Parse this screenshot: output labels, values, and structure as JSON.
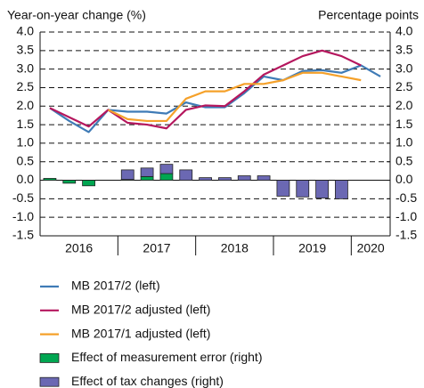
{
  "chart_data": {
    "type": "line",
    "y_label": "Year-on-year change (%)",
    "y2_label": "Percentage points",
    "categories": [
      "2016",
      null,
      null,
      null,
      "2017",
      null,
      null,
      null,
      "2018",
      null,
      null,
      null,
      "2019",
      null,
      null,
      null,
      "2020",
      null
    ],
    "ylim": [
      -1.5,
      4.0
    ],
    "yticks": [
      {
        "value": -1.5,
        "label": "-1.5"
      },
      {
        "value": -1.0,
        "label": "-1.0"
      },
      {
        "value": -0.5,
        "label": "-0.5"
      },
      {
        "value": 0,
        "label": "0.0"
      },
      {
        "value": 0.5,
        "label": "0.5"
      },
      {
        "value": 1.0,
        "label": "1.0"
      },
      {
        "value": 1.5,
        "label": "1.5"
      },
      {
        "value": 2.0,
        "label": "2.0"
      },
      {
        "value": 2.5,
        "label": "2.5"
      },
      {
        "value": 3.0,
        "label": "3.0"
      },
      {
        "value": 3.5,
        "label": "3.5"
      },
      {
        "value": 4.0,
        "label": "4.0"
      }
    ],
    "y2lim": [
      -1.5,
      4.0
    ],
    "y2ticks": [
      {
        "value": -1.5,
        "label": "-1.5"
      },
      {
        "value": -1.0,
        "label": "-1.0"
      },
      {
        "value": -0.5,
        "label": "-0.5"
      },
      {
        "value": 0,
        "label": "0.0"
      },
      {
        "value": 0.5,
        "label": "0.5"
      },
      {
        "value": 1.0,
        "label": "1.0"
      },
      {
        "value": 1.5,
        "label": "1.5"
      },
      {
        "value": 2.0,
        "label": "2.0"
      },
      {
        "value": 2.5,
        "label": "2.5"
      },
      {
        "value": 3.0,
        "label": "3.0"
      },
      {
        "value": 3.5,
        "label": "3.5"
      },
      {
        "value": 4.0,
        "label": "4.0"
      }
    ],
    "grid": true,
    "series": [
      {
        "name": "MB 2017/2 (left)",
        "kind": "line",
        "color": "#3f7bb6",
        "values": [
          1.95,
          1.6,
          1.3,
          1.9,
          1.85,
          1.85,
          1.8,
          2.1,
          1.97,
          1.97,
          2.35,
          2.8,
          2.7,
          2.95,
          2.97,
          2.9,
          3.1,
          2.8
        ]
      },
      {
        "name": "MB 2017/2 adjusted (left)",
        "kind": "line",
        "color": "#b5175e",
        "values": [
          1.95,
          1.7,
          1.45,
          1.9,
          1.55,
          1.5,
          1.4,
          1.9,
          2.02,
          2.0,
          2.4,
          2.85,
          3.1,
          3.35,
          3.5,
          3.35,
          3.1,
          null
        ]
      },
      {
        "name": "MB 2017/1 adjusted (left)",
        "kind": "line",
        "color": "#f5a12a",
        "values": [
          null,
          null,
          null,
          1.9,
          1.65,
          1.6,
          1.6,
          2.2,
          2.4,
          2.4,
          2.6,
          2.6,
          2.7,
          2.9,
          2.9,
          2.8,
          2.7,
          null
        ]
      },
      {
        "name": "Effect of measurement error (right)",
        "kind": "bar",
        "axis": "y2",
        "color": "#00a651",
        "values": [
          0.05,
          -0.08,
          -0.15,
          0,
          0.02,
          0.1,
          0.18,
          0,
          null,
          null,
          null,
          null,
          null,
          null,
          null,
          null,
          null,
          null
        ]
      },
      {
        "name": "Effect of tax changes (right)",
        "kind": "bar",
        "axis": "y2",
        "color": "#6b68b3",
        "values": [
          null,
          null,
          null,
          null,
          0.26,
          0.23,
          0.25,
          0.28,
          0.07,
          0.07,
          0.12,
          0.12,
          -0.43,
          -0.45,
          -0.48,
          -0.5,
          null,
          null
        ]
      }
    ]
  }
}
